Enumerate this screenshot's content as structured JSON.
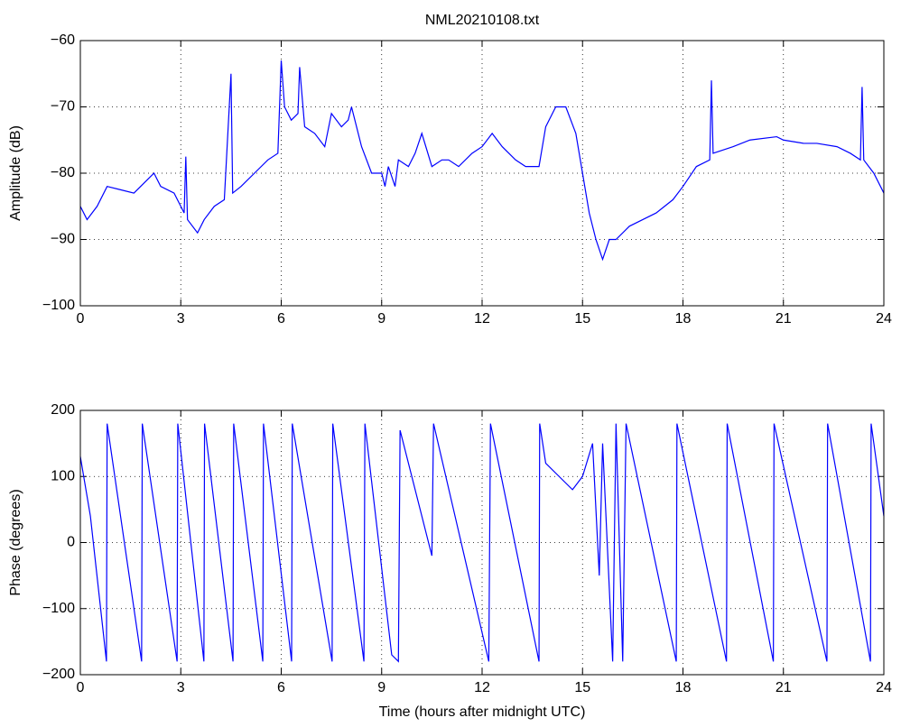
{
  "chart_data": [
    {
      "type": "line",
      "title": "NML20210108.txt",
      "y_label": "Amplitude (dB)",
      "xlim": [
        0,
        24
      ],
      "xticks": [
        0,
        3,
        6,
        9,
        12,
        15,
        18,
        21,
        24
      ],
      "ylim": [
        -100,
        -60
      ],
      "yticks": [
        {
          "value": -100,
          "label": "−100"
        },
        {
          "value": -90,
          "label": "−90"
        },
        {
          "value": -80,
          "label": "−80"
        },
        {
          "value": -70,
          "label": "−70"
        },
        {
          "value": -60,
          "label": "−60"
        }
      ],
      "grid": true,
      "series": [
        {
          "color": "#0000ff",
          "x": [
            0,
            0.2,
            0.5,
            0.8,
            1.2,
            1.6,
            2.0,
            2.2,
            2.4,
            2.8,
            3.0,
            3.1,
            3.15,
            3.2,
            3.5,
            3.7,
            4.0,
            4.3,
            4.5,
            4.55,
            4.8,
            5.2,
            5.6,
            5.9,
            6.0,
            6.1,
            6.3,
            6.5,
            6.55,
            6.7,
            7.0,
            7.3,
            7.5,
            7.8,
            8.0,
            8.1,
            8.4,
            8.7,
            9.0,
            9.1,
            9.2,
            9.4,
            9.5,
            9.8,
            10.0,
            10.2,
            10.5,
            10.8,
            11.0,
            11.3,
            11.7,
            12.0,
            12.3,
            12.6,
            13.0,
            13.3,
            13.7,
            13.9,
            14.2,
            14.5,
            14.8,
            15.0,
            15.2,
            15.4,
            15.6,
            15.8,
            16.0,
            16.4,
            16.8,
            17.2,
            17.7,
            18.0,
            18.4,
            18.8,
            18.85,
            18.9,
            19.5,
            20.0,
            20.8,
            21.0,
            21.6,
            22.0,
            22.6,
            23.0,
            23.3,
            23.35,
            23.4,
            23.7,
            24.0
          ],
          "values": [
            -85,
            -87,
            -85,
            -82,
            -82.5,
            -83,
            -81,
            -80,
            -82,
            -83,
            -85,
            -86,
            -77.5,
            -87,
            -89,
            -87,
            -85,
            -84,
            -65,
            -83,
            -82,
            -80,
            -78,
            -77,
            -63,
            -70,
            -72,
            -71,
            -64,
            -73,
            -74,
            -76,
            -71,
            -73,
            -72,
            -70,
            -76,
            -80,
            -80,
            -82,
            -79,
            -82,
            -78,
            -79,
            -77,
            -74,
            -79,
            -78,
            -78,
            -79,
            -77,
            -76,
            -74,
            -76,
            -78,
            -79,
            -79,
            -73,
            -70,
            -70,
            -74,
            -80,
            -86,
            -90,
            -93,
            -90,
            -90,
            -88,
            -87,
            -86,
            -84,
            -82,
            -79,
            -78,
            -66,
            -77,
            -76,
            -75,
            -74.5,
            -75,
            -75.5,
            -75.5,
            -76,
            -77,
            -78,
            -67,
            -78,
            -80,
            -83
          ]
        }
      ]
    },
    {
      "type": "line",
      "y_label": "Phase (degrees)",
      "x_label": "Time (hours after midnight UTC)",
      "xlim": [
        0,
        24
      ],
      "xticks": [
        0,
        3,
        6,
        9,
        12,
        15,
        18,
        21,
        24
      ],
      "ylim": [
        -200,
        200
      ],
      "yticks": [
        {
          "value": -200,
          "label": "−200"
        },
        {
          "value": -100,
          "label": "−100"
        },
        0,
        100,
        200
      ],
      "grid": true,
      "series": [
        {
          "color": "#0000ff",
          "x": [
            0,
            0.3,
            0.78,
            0.8,
            1.83,
            1.85,
            2.89,
            2.91,
            3.69,
            3.71,
            4.56,
            4.58,
            5.45,
            5.47,
            6.31,
            6.33,
            7.52,
            7.54,
            8.47,
            8.5,
            9.3,
            9.5,
            9.55,
            10.4,
            10.5,
            10.55,
            12.2,
            12.25,
            13.7,
            13.72,
            13.9,
            14.3,
            14.7,
            15.0,
            15.3,
            15.5,
            15.6,
            15.9,
            16.0,
            16.2,
            16.3,
            17.8,
            17.82,
            19.3,
            19.32,
            20.7,
            20.72,
            22.3,
            22.32,
            23.6,
            23.62,
            24
          ],
          "values": [
            130,
            40,
            -180,
            180,
            -180,
            180,
            -180,
            180,
            -180,
            180,
            -180,
            180,
            -180,
            180,
            -180,
            180,
            -180,
            180,
            -180,
            180,
            -170,
            -180,
            170,
            0,
            -20,
            180,
            -180,
            180,
            -180,
            180,
            120,
            100,
            80,
            100,
            150,
            -50,
            150,
            -180,
            180,
            -180,
            180,
            -180,
            180,
            -180,
            180,
            -180,
            180,
            -180,
            180,
            -180,
            180,
            40
          ]
        }
      ]
    }
  ]
}
